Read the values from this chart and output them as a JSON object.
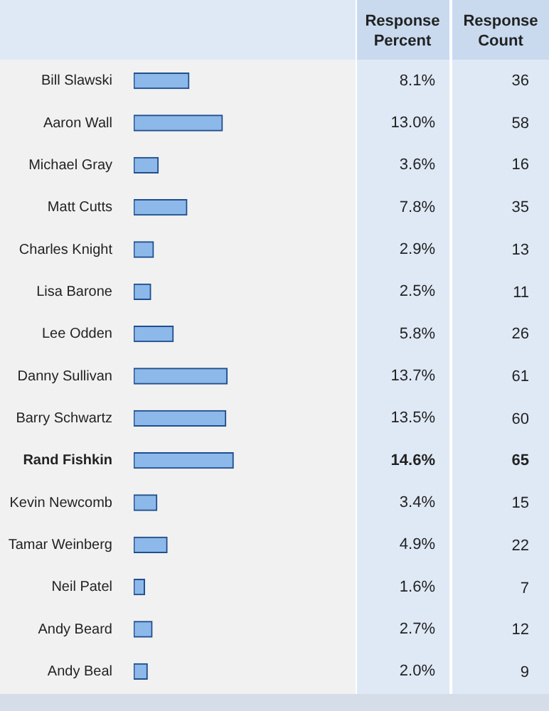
{
  "chart_data": [
    {
      "type": "bar",
      "orientation": "horizontal",
      "categories": [
        "Bill Slawski",
        "Aaron Wall",
        "Michael Gray",
        "Matt Cutts",
        "Charles Knight",
        "Lisa Barone",
        "Lee Odden",
        "Danny Sullivan",
        "Barry Schwartz",
        "Rand Fishkin",
        "Kevin Newcomb",
        "Tamar Weinberg",
        "Neil Patel",
        "Andy Beard",
        "Andy Beal"
      ],
      "series": [
        {
          "name": "Response Percent",
          "color": "#8db8ea",
          "values": [
            8.1,
            13.0,
            3.6,
            7.8,
            2.9,
            2.5,
            5.8,
            13.7,
            13.5,
            14.6,
            3.4,
            4.9,
            1.6,
            2.7,
            2.0
          ],
          "value_labels": [
            "8.1%",
            "13.0%",
            "3.6%",
            "7.8%",
            "2.9%",
            "2.5%",
            "5.8%",
            "13.7%",
            "13.5%",
            "14.6%",
            "3.4%",
            "4.9%",
            "1.6%",
            "2.7%",
            "2.0%"
          ]
        }
      ]
    },
    {
      "type": "other",
      "title": "Response Count",
      "data_labels": true,
      "values": [
        36,
        58,
        16,
        35,
        13,
        11,
        26,
        61,
        60,
        65,
        15,
        22,
        7,
        12,
        9
      ]
    }
  ]
}
